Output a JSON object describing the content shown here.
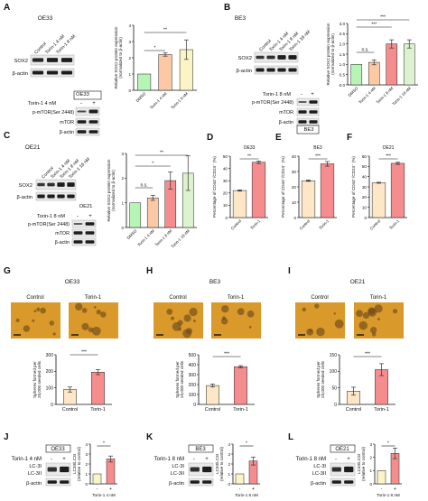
{
  "colors": {
    "control": "#fde7c6",
    "drug": "#f58d8f",
    "dose1": "#fcc9a4",
    "dose2": "#fbf4c4",
    "dmso": "#b6f5b6",
    "dose3": "#ddf2cf",
    "errorbar": "#333333",
    "band": "#1d1d1d",
    "micro": "#d99a2b"
  },
  "panels": {
    "A": {
      "letter": "A",
      "cell": "OE33",
      "lanes_top": [
        "Control",
        "Torin-1 4 nM",
        "Torin-1 8 nM"
      ],
      "blots_top": [
        "SOX2",
        "β-actin"
      ],
      "sub_cell": "OE33",
      "treatment_label": "Torin-1 4 nM",
      "treatment_signs": [
        "-",
        "+"
      ],
      "blots_bottom": [
        "p-mTOR(Ser 2448)",
        "mTOR",
        "β-actin"
      ]
    },
    "B": {
      "letter": "B",
      "cell": "BE3",
      "lanes_top": [
        "Control",
        "Torin-1 4 nM",
        "Torin-1 8 nM",
        "Torin-1 16 nM"
      ],
      "blots_top": [
        "SOX2",
        "β-actin"
      ],
      "sub_cell": "BE3",
      "treatment_label": "Torin-1 8 nM",
      "treatment_signs": [
        "-",
        "+"
      ],
      "blots_bottom": [
        "p-mTOR(Ser 2448)",
        "mTOR",
        "β-actin"
      ]
    },
    "C": {
      "letter": "C",
      "cell": "OE21",
      "lanes_top": [
        "Control",
        "Torin-1 4 nM",
        "Torin-1 8 nM",
        "Torin-1 16 nM"
      ],
      "blots_top": [
        "SOX2",
        "β-actin"
      ],
      "sub_cell": "OE21",
      "treatment_label": "Torin-1 8 nM",
      "treatment_signs": [
        "-",
        "+"
      ],
      "blots_bottom": [
        "p-mTOR(Ser 2448)",
        "mTOR",
        "β-actin"
      ]
    },
    "D": {
      "letter": "D"
    },
    "E": {
      "letter": "E"
    },
    "F": {
      "letter": "F"
    },
    "G": {
      "letter": "G",
      "cell": "OE33",
      "image_labels": [
        "Control",
        "Torin-1"
      ]
    },
    "H": {
      "letter": "H",
      "cell": "BE3",
      "image_labels": [
        "Control",
        "Torin-1"
      ]
    },
    "I": {
      "letter": "I",
      "cell": "OE21",
      "image_labels": [
        "Control",
        "Torin-1"
      ]
    },
    "J": {
      "letter": "J",
      "cell": "OE33",
      "treatment_label": "Torin-1 4 nM",
      "treatment_signs": [
        "-",
        "+"
      ],
      "blots": [
        "LC-3I",
        "LC-3II",
        "β-actin"
      ]
    },
    "K": {
      "letter": "K",
      "cell": "BE3",
      "treatment_label": "Torin-1 8 nM",
      "treatment_signs": [
        "-",
        "+"
      ],
      "blots": [
        "LC-3I",
        "LC-3II",
        "β-actin"
      ]
    },
    "L": {
      "letter": "L",
      "cell": "OE21",
      "treatment_label": "Torin-1 8 nM",
      "treatment_signs": [
        "-",
        "+"
      ],
      "blots": [
        "LC-3I",
        "LC-3II",
        "β-actin"
      ]
    }
  },
  "chart_data": [
    {
      "id": "A",
      "type": "bar",
      "ylabel": "Relative SOX2 protein expression (normalized to β-actin)",
      "categories": [
        "DMSO",
        "Torin-1 4 nM",
        "Torin-1 8 nM"
      ],
      "values": [
        1.0,
        2.2,
        2.5
      ],
      "errors": [
        0.0,
        0.1,
        0.6
      ],
      "ylim": [
        0,
        4
      ],
      "yticks": [
        0,
        1,
        2,
        3,
        4
      ],
      "sig": [
        {
          "from": 0,
          "to": 1,
          "label": "*"
        },
        {
          "from": 0,
          "to": 2,
          "label": "**"
        }
      ]
    },
    {
      "id": "B",
      "type": "bar",
      "ylabel": "Relative SOX2 protein expression (normalized to β-actin)",
      "categories": [
        "DMSO",
        "Torin-1 4 nM",
        "Torin-1 8 nM",
        "Torin-1 16 nM"
      ],
      "values": [
        1.0,
        1.1,
        2.0,
        2.0
      ],
      "errors": [
        0.0,
        0.12,
        0.2,
        0.2
      ],
      "ylim": [
        0,
        3
      ],
      "yticks": [
        0.0,
        0.5,
        1.0,
        1.5,
        2.0,
        2.5,
        3.0
      ],
      "sig": [
        {
          "from": 0,
          "to": 1,
          "label": "n.s."
        },
        {
          "from": 0,
          "to": 2,
          "label": "***"
        },
        {
          "from": 0,
          "to": 3,
          "label": "***"
        }
      ]
    },
    {
      "id": "C",
      "type": "bar",
      "ylabel": "Relative SOX2 protein expression (normalized to β-actin)",
      "categories": [
        "DMSO",
        "Torin-1 4 nM",
        "Torin-1 8 nM",
        "Torin-1 16 nM"
      ],
      "values": [
        1.0,
        1.2,
        1.9,
        2.2
      ],
      "errors": [
        0.0,
        0.1,
        0.35,
        0.7
      ],
      "ylim": [
        0,
        3
      ],
      "yticks": [
        0,
        1,
        2,
        3
      ],
      "sig": [
        {
          "from": 0,
          "to": 1,
          "label": "n.s."
        },
        {
          "from": 0,
          "to": 2,
          "label": "*"
        },
        {
          "from": 0,
          "to": 3,
          "label": "**"
        }
      ]
    },
    {
      "id": "D",
      "type": "bar",
      "title": "OE33",
      "ylabel": "Percentage of CD44⁺/CD24⁻ (%)",
      "categories": [
        "Control",
        "Torin-1"
      ],
      "values": [
        22,
        45
      ],
      "errors": [
        0.5,
        1.0
      ],
      "ylim": [
        0,
        50
      ],
      "yticks": [
        0,
        10,
        20,
        30,
        40,
        50
      ],
      "sig": [
        {
          "from": 0,
          "to": 1,
          "label": "**"
        }
      ]
    },
    {
      "id": "E",
      "type": "bar",
      "title": "BE3",
      "ylabel": "Percentage of CD44⁺/CD24⁻ (%)",
      "categories": [
        "Control",
        "Torin-1"
      ],
      "values": [
        24,
        35
      ],
      "errors": [
        0.4,
        1.5
      ],
      "ylim": [
        0,
        40
      ],
      "yticks": [
        0,
        10,
        20,
        30,
        40
      ],
      "sig": [
        {
          "from": 0,
          "to": 1,
          "label": "***"
        }
      ]
    },
    {
      "id": "F",
      "type": "bar",
      "title": "OE21",
      "ylabel": "Percentage of CD44⁺/CD24⁻ (%)",
      "categories": [
        "Control",
        "Torin-1"
      ],
      "values": [
        34,
        53
      ],
      "errors": [
        0.5,
        1.0
      ],
      "ylim": [
        0,
        60
      ],
      "yticks": [
        0,
        10,
        20,
        30,
        40,
        50,
        60
      ],
      "sig": [
        {
          "from": 0,
          "to": 1,
          "label": "***"
        }
      ]
    },
    {
      "id": "G",
      "type": "bar",
      "ylabel": "Spheres formed per 20,000 seeded cells",
      "categories": [
        "Control",
        "Torin-1"
      ],
      "values": [
        90,
        195
      ],
      "errors": [
        15,
        15
      ],
      "ylim": [
        0,
        300
      ],
      "yticks": [
        0,
        100,
        200,
        300
      ],
      "sig": [
        {
          "from": 0,
          "to": 1,
          "label": "***"
        }
      ]
    },
    {
      "id": "H",
      "type": "bar",
      "ylabel": "Spheres formed per 20,000 seeded cells",
      "categories": [
        "Control",
        "Torin-1"
      ],
      "values": [
        190,
        380
      ],
      "errors": [
        15,
        10
      ],
      "ylim": [
        0,
        500
      ],
      "yticks": [
        0,
        100,
        200,
        300,
        400,
        500
      ],
      "sig": [
        {
          "from": 0,
          "to": 1,
          "label": "***"
        }
      ]
    },
    {
      "id": "I",
      "type": "bar",
      "ylabel": "Spheres formed per 20,000 seeded cells",
      "categories": [
        "Control",
        "Torin-1"
      ],
      "values": [
        40,
        105
      ],
      "errors": [
        12,
        18
      ],
      "ylim": [
        0,
        150
      ],
      "yticks": [
        0,
        50,
        100,
        150
      ],
      "sig": [
        {
          "from": 0,
          "to": 1,
          "label": "***"
        }
      ]
    },
    {
      "id": "J",
      "type": "bar",
      "ylabel": "LC3II/LC3I (relative to control)",
      "categories": [
        "-",
        "+"
      ],
      "xlabel": "Torin-1 4 nM",
      "values": [
        1.0,
        2.5
      ],
      "errors": [
        0.0,
        0.3
      ],
      "ylim": [
        0,
        4
      ],
      "yticks": [
        0,
        1,
        2,
        3,
        4
      ],
      "sig": [
        {
          "from": 0,
          "to": 1,
          "label": "*"
        }
      ]
    },
    {
      "id": "K",
      "type": "bar",
      "ylabel": "LC3II/LC3I (relative to control)",
      "categories": [
        "-",
        "+"
      ],
      "xlabel": "Torin-1 8 nM",
      "values": [
        1.0,
        2.3
      ],
      "errors": [
        0.0,
        0.4
      ],
      "ylim": [
        0,
        4
      ],
      "yticks": [
        0,
        1,
        2,
        3,
        4
      ],
      "sig": [
        {
          "from": 0,
          "to": 1,
          "label": "*"
        }
      ]
    },
    {
      "id": "L",
      "type": "bar",
      "ylabel": "LC3II/LC3I (relative to control)",
      "categories": [
        "-",
        "+"
      ],
      "xlabel": "Torin-1 8 nM",
      "values": [
        1.0,
        2.3
      ],
      "errors": [
        0.0,
        0.4
      ],
      "ylim": [
        0,
        3
      ],
      "yticks": [
        0,
        1,
        2,
        3
      ],
      "sig": [
        {
          "from": 0,
          "to": 1,
          "label": "*"
        }
      ]
    }
  ]
}
